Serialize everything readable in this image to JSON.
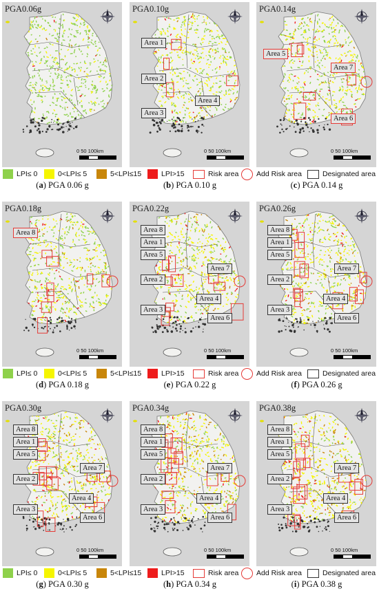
{
  "panels": [
    {
      "pga_label": "PGA0.06g",
      "letter": "a",
      "caption": "PGA 0.06 g",
      "areas": []
    },
    {
      "pga_label": "PGA0.10g",
      "letter": "b",
      "caption": "PGA 0.10 g",
      "areas": [
        {
          "label": "Area 1",
          "kind": "designated"
        },
        {
          "label": "Area 2",
          "kind": "designated"
        },
        {
          "label": "Area 3",
          "kind": "designated"
        },
        {
          "label": "Area 4",
          "kind": "designated"
        }
      ]
    },
    {
      "pga_label": "PGA0.14g",
      "letter": "c",
      "caption": "PGA 0.14 g",
      "areas": [
        {
          "label": "Area 5",
          "kind": "new"
        },
        {
          "label": "Area 7",
          "kind": "new"
        },
        {
          "label": "Area 6",
          "kind": "new"
        }
      ]
    },
    {
      "pga_label": "PGA0.18g",
      "letter": "d",
      "caption": "PGA 0.18 g",
      "areas": [
        {
          "label": "Area 8",
          "kind": "new"
        }
      ]
    },
    {
      "pga_label": "PGA0.22g",
      "letter": "e",
      "caption": "PGA 0.22 g",
      "areas": [
        {
          "label": "Area 8",
          "kind": "designated"
        },
        {
          "label": "Area 1",
          "kind": "designated"
        },
        {
          "label": "Area 5",
          "kind": "designated"
        },
        {
          "label": "Area 7",
          "kind": "designated"
        },
        {
          "label": "Area 2",
          "kind": "designated"
        },
        {
          "label": "Area 4",
          "kind": "designated"
        },
        {
          "label": "Area 3",
          "kind": "designated"
        },
        {
          "label": "Area 6",
          "kind": "designated"
        }
      ]
    },
    {
      "pga_label": "PGA0.26g",
      "letter": "f",
      "caption": "PGA 0.26 g",
      "areas": [
        {
          "label": "Area 8",
          "kind": "designated"
        },
        {
          "label": "Area 1",
          "kind": "designated"
        },
        {
          "label": "Area 5",
          "kind": "designated"
        },
        {
          "label": "Area 7",
          "kind": "designated"
        },
        {
          "label": "Area 2",
          "kind": "designated"
        },
        {
          "label": "Area 4",
          "kind": "designated"
        },
        {
          "label": "Area 3",
          "kind": "designated"
        },
        {
          "label": "Area 6",
          "kind": "designated"
        }
      ]
    },
    {
      "pga_label": "PGA0.30g",
      "letter": "g",
      "caption": "PGA 0.30 g",
      "areas": [
        {
          "label": "Area 8",
          "kind": "designated"
        },
        {
          "label": "Area 1",
          "kind": "designated"
        },
        {
          "label": "Area 5",
          "kind": "designated"
        },
        {
          "label": "Area 7",
          "kind": "designated"
        },
        {
          "label": "Area 2",
          "kind": "designated"
        },
        {
          "label": "Area 4",
          "kind": "designated"
        },
        {
          "label": "Area 3",
          "kind": "designated"
        },
        {
          "label": "Area 6",
          "kind": "designated"
        }
      ]
    },
    {
      "pga_label": "PGA0.34g",
      "letter": "h",
      "caption": "PGA 0.34 g",
      "areas": [
        {
          "label": "Area 8",
          "kind": "designated"
        },
        {
          "label": "Area 1",
          "kind": "designated"
        },
        {
          "label": "Area 5",
          "kind": "designated"
        },
        {
          "label": "Area 7",
          "kind": "designated"
        },
        {
          "label": "Area 2",
          "kind": "designated"
        },
        {
          "label": "Area 4",
          "kind": "designated"
        },
        {
          "label": "Area 3",
          "kind": "designated"
        },
        {
          "label": "Area 6",
          "kind": "designated"
        }
      ]
    },
    {
      "pga_label": "PGA0.38g",
      "letter": "i",
      "caption": "PGA 0.38 g",
      "areas": [
        {
          "label": "Area 8",
          "kind": "designated"
        },
        {
          "label": "Area 1",
          "kind": "designated"
        },
        {
          "label": "Area 5",
          "kind": "designated"
        },
        {
          "label": "Area 7",
          "kind": "designated"
        },
        {
          "label": "Area 2",
          "kind": "designated"
        },
        {
          "label": "Area 4",
          "kind": "designated"
        },
        {
          "label": "Area 3",
          "kind": "designated"
        },
        {
          "label": "Area 6",
          "kind": "designated"
        }
      ]
    }
  ],
  "scale_label": "0  50  100km",
  "legend": {
    "items": [
      {
        "label": "LPI≤ 0",
        "color": "#8ed14b"
      },
      {
        "label": "0<LPI≤ 5",
        "color": "#f5f500"
      },
      {
        "label": "5<LPI≤15",
        "color": "#c8860a"
      },
      {
        "label": "LPI>15",
        "color": "#ee1c1c"
      }
    ],
    "risk_area": "Risk area",
    "add_risk_area": "Add Risk area",
    "designated_area": "Designated area"
  },
  "colors": {
    "background": "#d5d5d5",
    "land": "#f2f2f0",
    "risk": "#e53935"
  }
}
